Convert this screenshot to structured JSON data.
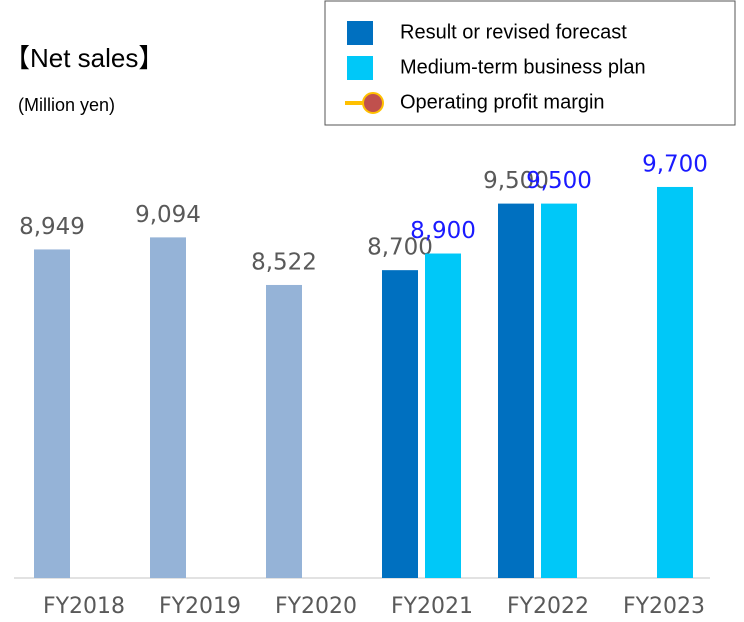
{
  "chart_data": {
    "type": "bar",
    "title": "【Net sales】",
    "subtitle": "(Million yen)",
    "categories": [
      "FY2018",
      "FY2019",
      "FY2020",
      "FY2021",
      "FY2022",
      "FY2023"
    ],
    "ylim": [
      5000,
      10000
    ],
    "series": [
      {
        "color": "#95b3d7",
        "label_color": "#595959",
        "slot": 0,
        "values": [
          8949,
          9094,
          8522,
          null,
          null,
          null
        ],
        "value_labels": [
          "8,949",
          "9,094",
          "8,522",
          null,
          null,
          null
        ]
      },
      {
        "name": "Result or revised forecast",
        "color": "#0070c0",
        "label_color": "#595959",
        "slot": 0,
        "values": [
          null,
          null,
          null,
          8700,
          9500,
          null
        ],
        "value_labels": [
          null,
          null,
          null,
          "8,700",
          "9,500",
          null
        ]
      },
      {
        "name": "Medium-term business plan",
        "color": "#00c8f8",
        "label_color": "#1a1aff",
        "slot": 1,
        "values": [
          null,
          null,
          null,
          8900,
          9500,
          9700
        ],
        "value_labels": [
          null,
          null,
          null,
          "8,900",
          "9,500",
          "9,700"
        ]
      },
      {
        "name": "Operating profit margin",
        "type": "line",
        "color": "#ffc000",
        "marker_color": "#c0504d",
        "values": [
          null,
          null,
          null,
          null,
          null,
          null
        ]
      }
    ]
  }
}
